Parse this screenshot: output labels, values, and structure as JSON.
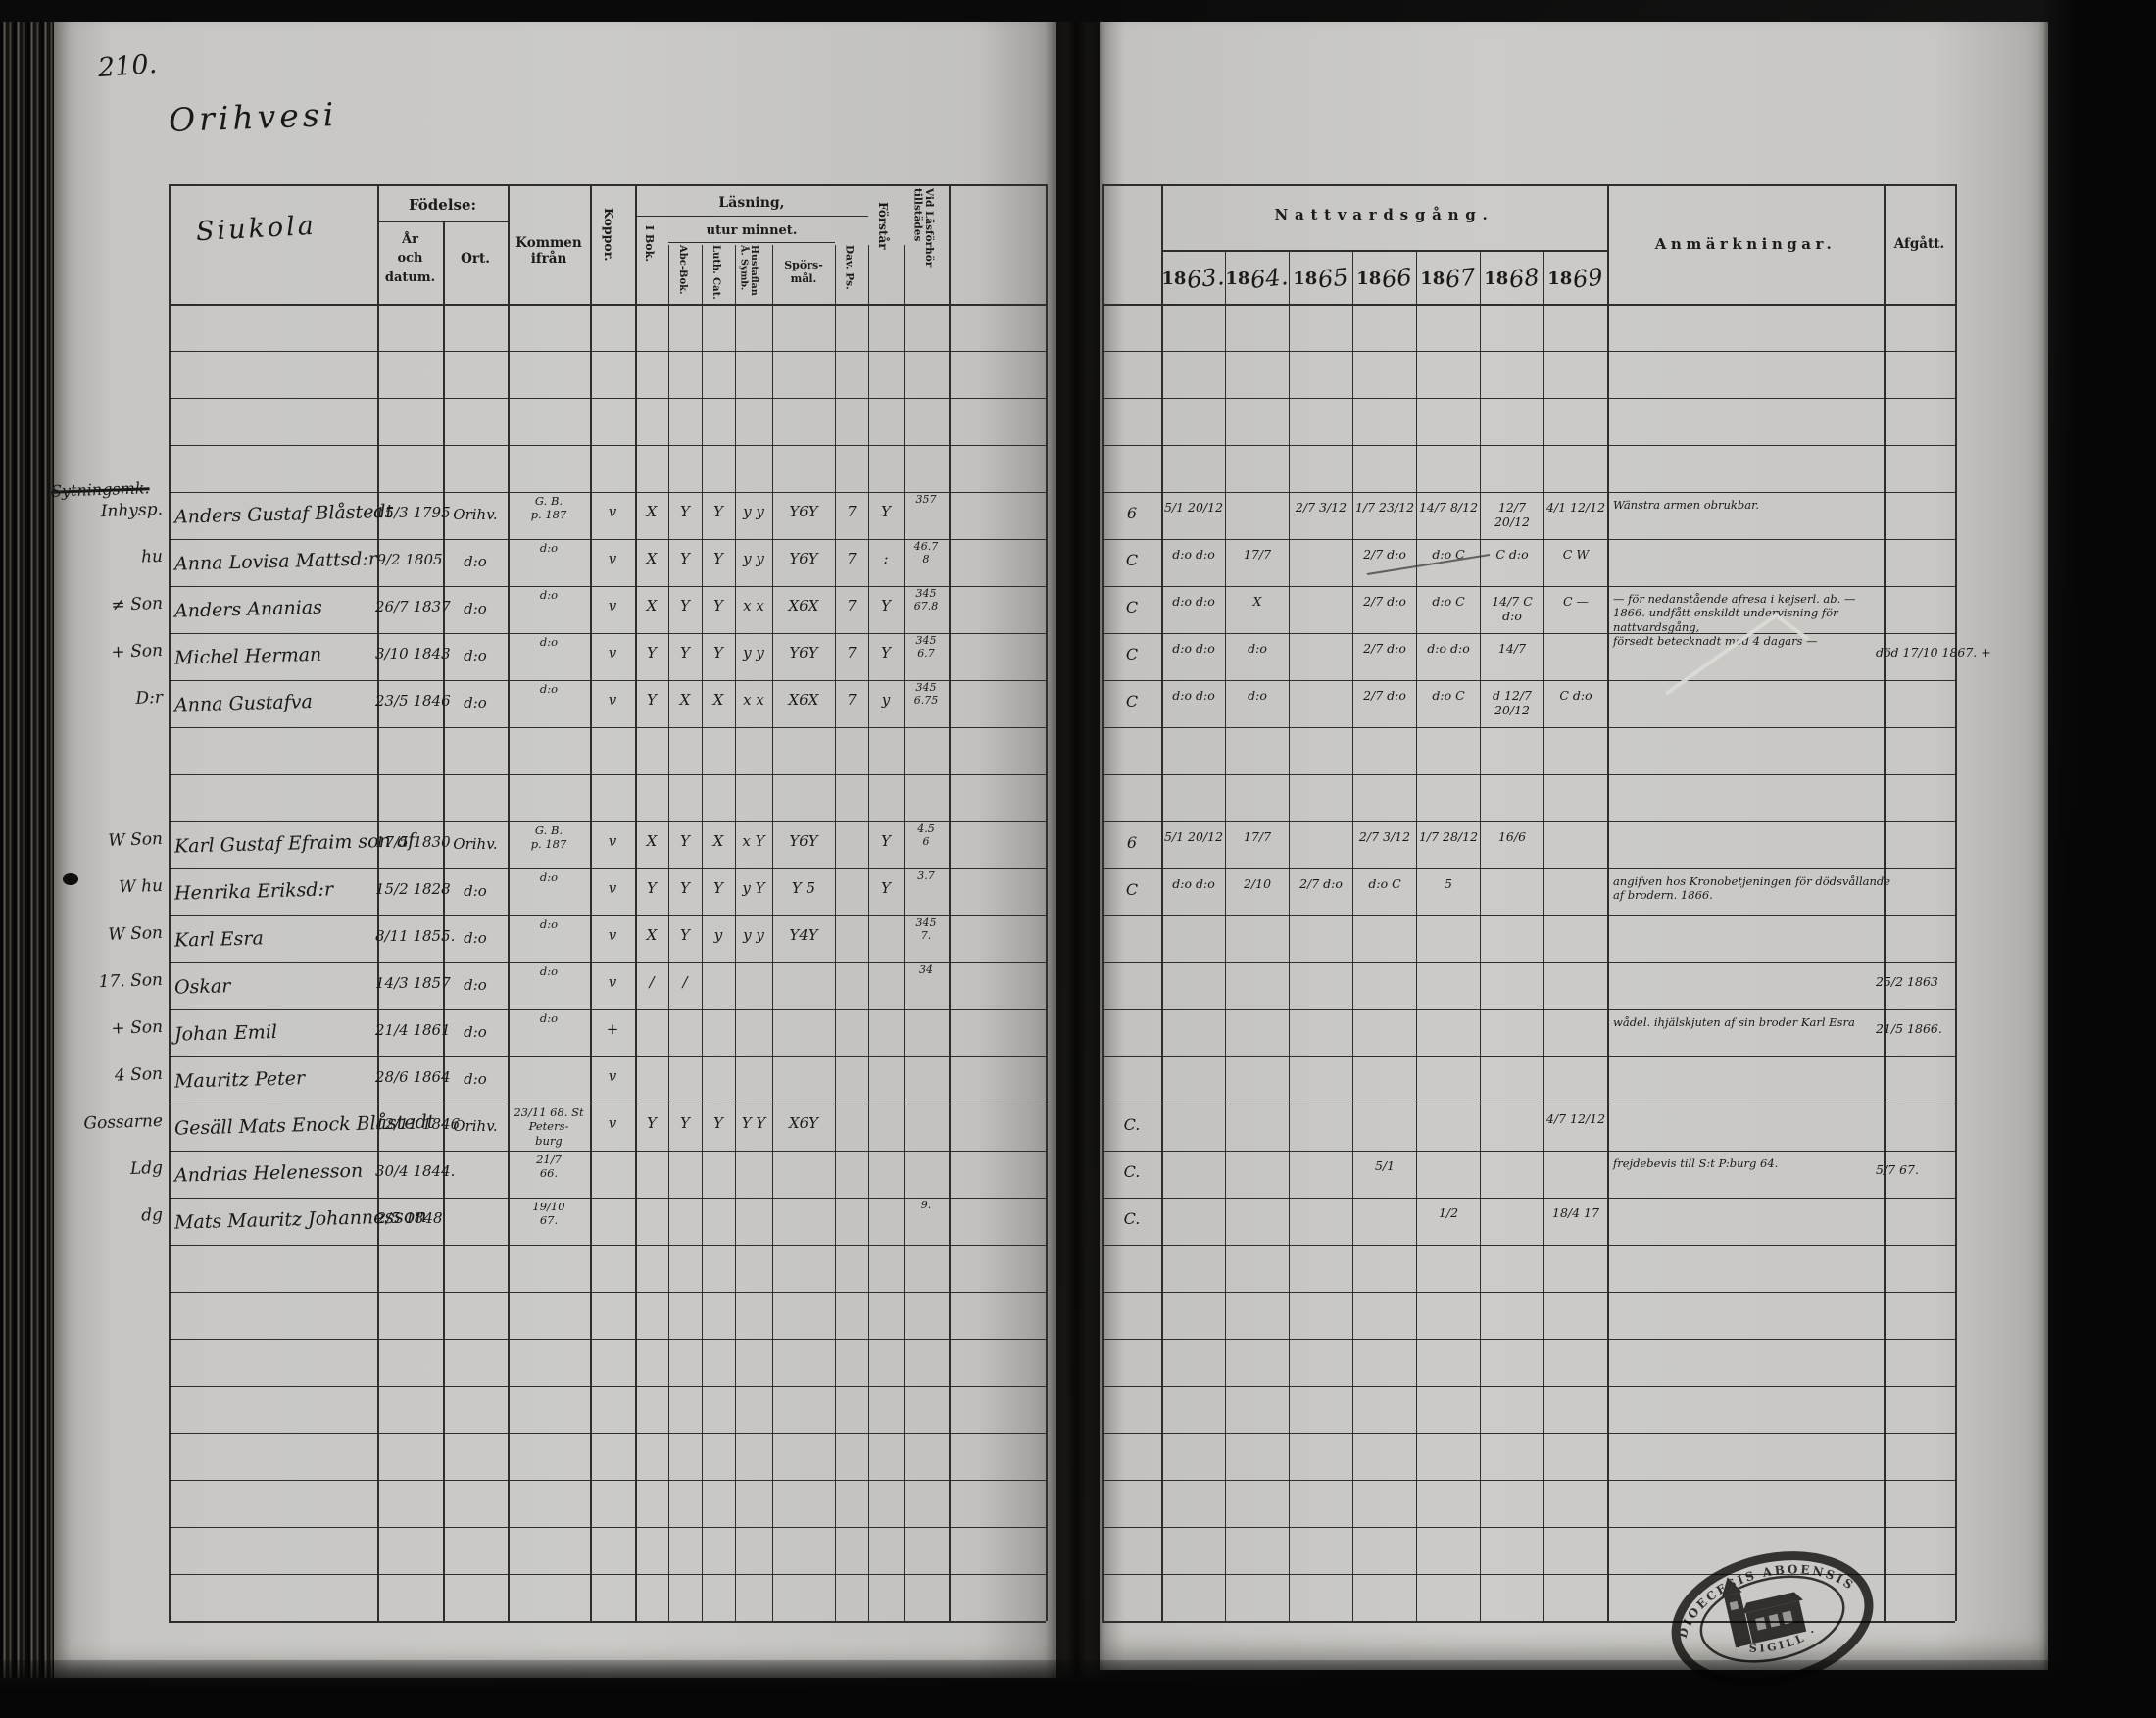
{
  "page": {
    "folio_number": "210.",
    "title_handwritten": "Orihvesi",
    "village_handwritten": "Siukola",
    "margin_note_struck": "Sytningsmk."
  },
  "left_table": {
    "headers": {
      "fodelse_group": "Födelse:",
      "fodelse_ar": "År\noch datum.",
      "fodelse_ort": "Ort.",
      "kommen": "Kommen ifrån",
      "koppor": "Koppor.",
      "lasning_group": "Läsning,",
      "utur_minnet": "utur minnet.",
      "i_bok": "I Bok.",
      "abc_bok": "Abc-Bok.",
      "luth_cat": "Luth. Cat.",
      "hustaflan": "Hustaflan\nÅ. Symb.",
      "sporsmal": "Spörs-\nmål.",
      "dav_ps": "Dav. Ps.",
      "forstar": "Förstår",
      "vid_lasforhor": "Vid Läsförhör\ntillstädes"
    }
  },
  "right_table": {
    "headers": {
      "nattvardsgang": "Nattvardsgång.",
      "year_prefix": "18",
      "year_suffixes": [
        "63.",
        "64.",
        "65",
        "66",
        "67",
        "68",
        "69"
      ],
      "anmarkningar": "Anmärkningar.",
      "afgatt": "Afgått."
    }
  },
  "stamp": {
    "ring_text_top": "DIOECESIS ABOENSIS",
    "ring_text_bottom": "· SIGILL ·",
    "icon": "church-icon"
  },
  "rows": [
    {},
    {},
    {},
    {},
    {
      "m": "Inhysp.",
      "name": "Anders Gustaf Blåstedt",
      "born": "15/3 1795",
      "ort": "Orihv.",
      "from": "G. B.\np. 187",
      "marks": [
        "v",
        "X",
        "Y",
        "Y",
        "y y",
        "Y6Y",
        "7",
        "Y",
        "357"
      ],
      "comm": [
        "6",
        "5/1 20/12",
        "",
        "2/7 3/12",
        "1/7 23/12",
        "14/7 8/12",
        "12/7 20/12",
        "4/1 12/12"
      ],
      "anm": "Wänstra armen obrukbar.",
      "afgatt": ""
    },
    {
      "m": "hu",
      "name": "Anna Lovisa Mattsd:r",
      "born": "9/2 1805",
      "ort": "d:o",
      "from": "d:o",
      "marks": [
        "v",
        "X",
        "Y",
        "Y",
        "y y",
        "Y6Y",
        "7",
        ":",
        "46.7\n8"
      ],
      "comm": [
        "C",
        "d:o d:o",
        "17/7",
        "",
        "2/7 d:o",
        "d:o C",
        "C d:o",
        "C W"
      ],
      "anm": "",
      "afgatt": ""
    },
    {
      "m": "≠ Son",
      "name": "Anders Ananias",
      "born": "26/7 1837",
      "ort": "d:o",
      "from": "d:o",
      "marks": [
        "v",
        "X",
        "Y",
        "Y",
        "x x",
        "X6X",
        "7",
        "Y",
        "345\n67.8"
      ],
      "comm": [
        "C",
        "d:o d:o",
        "X",
        "",
        "2/7 d:o",
        "d:o C",
        "14/7 C d:o",
        "C —"
      ],
      "anm": "— för nedanstående afresa i kejserl. ab. —\n1866. undfått enskildt undervisning för nattvardsgång,\nförsedt betecknadt med 4 dagars —",
      "afgatt": ""
    },
    {
      "m": "+ Son",
      "name": "Michel Herman",
      "born": "3/10 1843",
      "ort": "d:o",
      "from": "d:o",
      "marks": [
        "v",
        "Y",
        "Y",
        "Y",
        "y y",
        "Y6Y",
        "7",
        "Y",
        "345\n6.7"
      ],
      "comm": [
        "C",
        "d:o d:o",
        "d:o",
        "",
        "2/7 d:o",
        "d:o d:o",
        "14/7",
        ""
      ],
      "anm": "",
      "afgatt": "död 17/10 1867.  +"
    },
    {
      "m": "D:r",
      "name": "Anna Gustafva",
      "born": "23/5 1846",
      "ort": "d:o",
      "from": "d:o",
      "marks": [
        "v",
        "Y",
        "X",
        "X",
        "x x",
        "X6X",
        "7",
        "y",
        "345\n6.75"
      ],
      "comm": [
        "C",
        "d:o d:o",
        "d:o",
        "",
        "2/7 d:o",
        "d:o C",
        "d 12/7 20/12",
        "C d:o"
      ],
      "anm": "",
      "afgatt": ""
    },
    {},
    {},
    {
      "m": "W Son",
      "name": "Karl Gustaf Efraim son af",
      "born": "17/5 1830",
      "ort": "Orihv.",
      "from": "G. B.\np. 187",
      "marks": [
        "v",
        "X",
        "Y",
        "X",
        "x Y",
        "Y6Y",
        "",
        "Y",
        "4.5\n6"
      ],
      "comm": [
        "6",
        "5/1 20/12",
        "17/7",
        "",
        "2/7 3/12",
        "1/7 28/12",
        "16/6",
        ""
      ],
      "anm": "",
      "afgatt": ""
    },
    {
      "m": "W hu",
      "name": "Henrika Eriksd:r",
      "born": "15/2 1828",
      "ort": "d:o",
      "from": "d:o",
      "marks": [
        "v",
        "Y",
        "Y",
        "Y",
        "y Y",
        "Y 5",
        "",
        "Y",
        "3.7"
      ],
      "comm": [
        "C",
        "d:o d:o",
        "2/10",
        "2/7 d:o",
        "d:o C",
        "5",
        "",
        ""
      ],
      "anm": "angifven hos Kronobetjeningen för dödsvållande\naf brodern. 1866.",
      "afgatt": ""
    },
    {
      "m": "W Son",
      "name": "Karl Esra",
      "born": "8/11 1855.",
      "ort": "d:o",
      "from": "d:o",
      "marks": [
        "v",
        "X",
        "Y",
        "y",
        "y y",
        "Y4Y",
        "",
        "",
        "345\n7."
      ],
      "comm": [
        "",
        "",
        "",
        "",
        "",
        "",
        "",
        ""
      ],
      "anm": "",
      "afgatt": ""
    },
    {
      "m": "17. Son",
      "name": "Oskar",
      "born": "14/3 1857",
      "ort": "d:o",
      "from": "d:o",
      "marks": [
        "v",
        "/",
        "/",
        "",
        "",
        "",
        "",
        "",
        "34"
      ],
      "comm": [
        "",
        "",
        "",
        "",
        "",
        "",
        "",
        ""
      ],
      "anm": "",
      "afgatt": "25/2 1863"
    },
    {
      "m": "+ Son",
      "name": "Johan Emil",
      "born": "21/4 1861",
      "ort": "d:o",
      "from": "d:o",
      "marks": [
        "+",
        "",
        "",
        "",
        "",
        "",
        "",
        "",
        ""
      ],
      "comm": [
        "",
        "",
        "",
        "",
        "",
        "",
        "",
        ""
      ],
      "anm": "wådel. ihjälskjuten af sin broder Karl Esra",
      "afgatt": "21/5 1866."
    },
    {
      "m": "4 Son",
      "name": "Mauritz Peter",
      "born": "28/6 1864",
      "ort": "d:o",
      "from": "",
      "marks": [
        "v",
        "",
        "",
        "",
        "",
        "",
        "",
        "",
        ""
      ],
      "comm": [
        "",
        "",
        "",
        "",
        "",
        "",
        "",
        ""
      ],
      "anm": "",
      "afgatt": ""
    },
    {
      "m": "Gossarne",
      "name": "Gesäll Mats Enock Blåstedt",
      "born": "12/11 1846",
      "ort": "Orihv.",
      "from": "23/11 68. St Peters-\nburg",
      "marks": [
        "v",
        "Y",
        "Y",
        "Y",
        "Y Y",
        "X6Y",
        "",
        "",
        ""
      ],
      "comm": [
        "C.",
        "",
        "",
        "",
        "",
        "",
        "",
        "4/7 12/12"
      ],
      "anm": "",
      "afgatt": ""
    },
    {
      "m": "Ldg",
      "name": "Andrias Helenesson",
      "born": "30/4 1844.",
      "ort": "",
      "from": "21/7\n66.",
      "marks": [
        "",
        "",
        "",
        "",
        "",
        "",
        "",
        "",
        ""
      ],
      "comm": [
        "C.",
        "",
        "",
        "",
        "5/1",
        "",
        "",
        ""
      ],
      "anm": "frejdebevis till S:t P:burg 64.",
      "afgatt": "5/7 67."
    },
    {
      "m": "dg",
      "name": "Mats Mauritz Johannesson",
      "born": "2/5 1848",
      "ort": "",
      "from": "19/10\n67.",
      "marks": [
        "",
        "",
        "",
        "",
        "",
        "",
        "",
        "",
        "9."
      ],
      "comm": [
        "C.",
        "",
        "",
        "",
        "",
        "1/2",
        "",
        "18/4 17"
      ],
      "anm": "",
      "afgatt": ""
    },
    {},
    {},
    {},
    {},
    {},
    {},
    {},
    {}
  ]
}
